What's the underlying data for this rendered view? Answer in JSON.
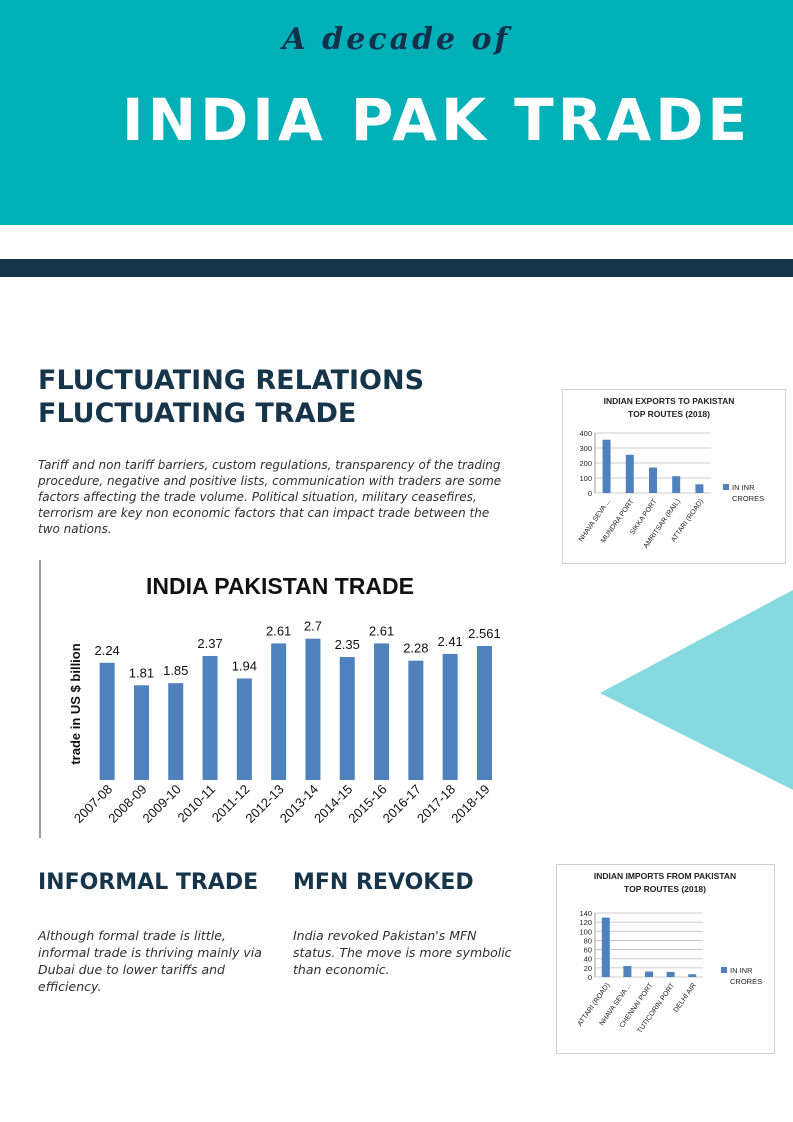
{
  "header": {
    "kicker": "A decade of",
    "title": "INDIA PAK TRADE",
    "colors": {
      "banner": "#00b0b9",
      "navy": "#16354b",
      "accent_triangle": "#86d9de",
      "bar": "#4f81bd"
    }
  },
  "section_fluctuating": {
    "heading_line1": "FLUCTUATING RELATIONS",
    "heading_line2": "FLUCTUATING TRADE",
    "body": "Tariff and non tariff barriers, custom regulations, transparency of the trading procedure, negative and positive lists, communication with traders are some factors affecting the trade volume. Political situation, military ceasefires, terrorism are key non economic factors that can impact trade between the two nations."
  },
  "section_informal": {
    "heading": "INFORMAL TRADE",
    "body": "Although formal trade is little, informal trade is thriving mainly via Dubai due to lower tariffs and efficiency."
  },
  "section_mfn": {
    "heading": "MFN REVOKED",
    "body": "India revoked Pakistan's MFN status. The move is more symbolic than economic."
  },
  "chart_data": [
    {
      "type": "bar",
      "title": "INDIA PAKISTAN TRADE",
      "ylabel": "trade in US $ billion",
      "xlabel": "",
      "categories": [
        "2007-08",
        "2008-09",
        "2009-10",
        "2010-11",
        "2011-12",
        "2012-13",
        "2013-14",
        "2014-15",
        "2015-16",
        "2016-17",
        "2017-18",
        "2018-19"
      ],
      "values": [
        2.24,
        1.81,
        1.85,
        2.37,
        1.94,
        2.61,
        2.7,
        2.35,
        2.61,
        2.28,
        2.41,
        2.561
      ],
      "value_labels": [
        "2.24",
        "1.81",
        "1.85",
        "2.37",
        "1.94",
        "2.61",
        "2.7",
        "2.35",
        "2.61",
        "2.28",
        "2.41",
        "2.561"
      ],
      "ylim": [
        0,
        3
      ],
      "grid": false,
      "legend": "none"
    },
    {
      "type": "bar",
      "title_line1": "INDIAN EXPORTS TO PAKISTAN",
      "title_line2": "TOP ROUTES (2018)",
      "categories": [
        "NHAVA SEVA ...",
        "MUNDRA PORT",
        "SIKKA PORT",
        "AMRITSAR (RAIL)",
        "ATTARI (ROAD)"
      ],
      "values": [
        355,
        255,
        170,
        112,
        58
      ],
      "yticks": [
        "0",
        "100",
        "200",
        "300",
        "400"
      ],
      "ylim": [
        0,
        400
      ],
      "grid": true,
      "legend_line1": "IN INR",
      "legend_line2": "CRORES",
      "legend": "right"
    },
    {
      "type": "bar",
      "title_line1": "INDIAN IMPORTS FROM PAKISTAN",
      "title_line2": "TOP ROUTES (2018)",
      "categories": [
        "ATTARI (ROAD)",
        "NHAVA SEVA ...",
        "CHENNAI PORT",
        "TUTICORIN PORT",
        "DELHI AIR"
      ],
      "values": [
        130,
        24,
        12,
        11,
        6
      ],
      "yticks": [
        "0",
        "20",
        "40",
        "60",
        "80",
        "100",
        "120",
        "140"
      ],
      "ylim": [
        0,
        140
      ],
      "grid": true,
      "legend_line1": "IN INR",
      "legend_line2": "CRORES",
      "legend": "right"
    }
  ]
}
